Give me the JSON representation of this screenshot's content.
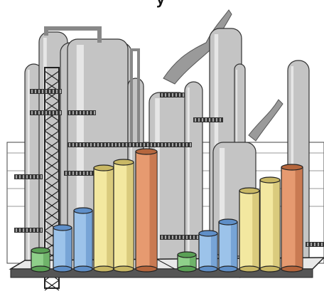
{
  "header": {
    "text": "y"
  }
}
